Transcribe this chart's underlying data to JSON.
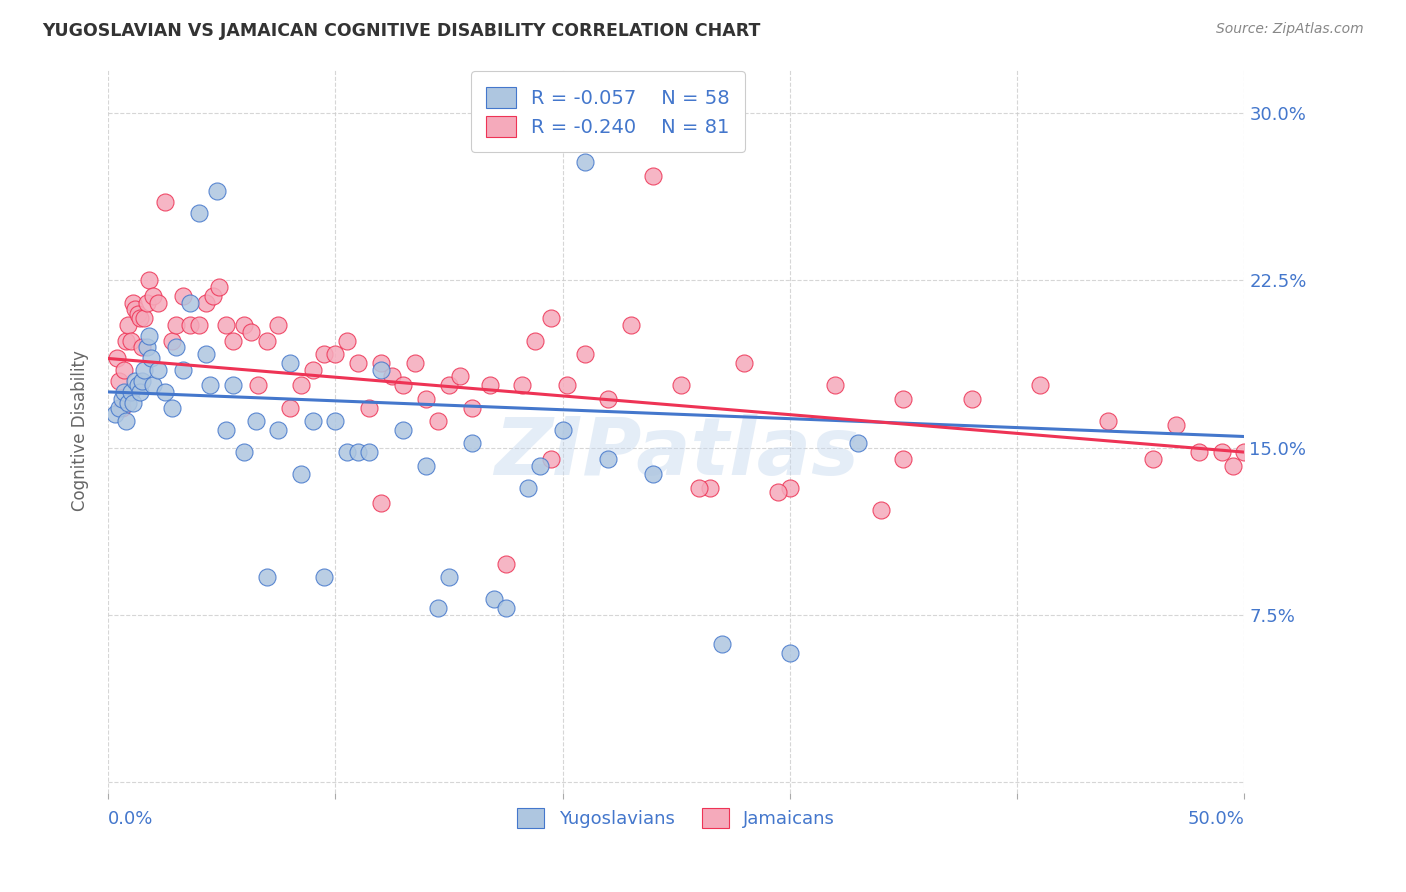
{
  "title": "YUGOSLAVIAN VS JAMAICAN COGNITIVE DISABILITY CORRELATION CHART",
  "source": "Source: ZipAtlas.com",
  "ylabel": "Cognitive Disability",
  "yticks": [
    0.0,
    0.075,
    0.15,
    0.225,
    0.3
  ],
  "ytick_labels": [
    "",
    "7.5%",
    "15.0%",
    "22.5%",
    "30.0%"
  ],
  "xlim": [
    0.0,
    0.5
  ],
  "ylim": [
    -0.005,
    0.32
  ],
  "yugo_R": -0.057,
  "yugo_N": 58,
  "jama_R": -0.24,
  "jama_N": 81,
  "yugo_color": "#aec6e0",
  "jama_color": "#f5aabb",
  "yugo_line_color": "#4477cc",
  "jama_line_color": "#ee3355",
  "legend_label_yugo": "Yugoslavians",
  "legend_label_jama": "Jamaicans",
  "watermark": "ZIPatlas",
  "background_color": "#ffffff",
  "grid_color": "#cccccc",
  "axis_label_color": "#4477cc",
  "yugo_x": [
    0.003,
    0.005,
    0.006,
    0.007,
    0.008,
    0.009,
    0.01,
    0.011,
    0.012,
    0.013,
    0.014,
    0.015,
    0.016,
    0.017,
    0.018,
    0.019,
    0.02,
    0.022,
    0.025,
    0.028,
    0.03,
    0.033,
    0.036,
    0.04,
    0.043,
    0.045,
    0.048,
    0.052,
    0.055,
    0.06,
    0.065,
    0.07,
    0.075,
    0.08,
    0.085,
    0.09,
    0.095,
    0.1,
    0.105,
    0.11,
    0.115,
    0.12,
    0.13,
    0.14,
    0.145,
    0.15,
    0.16,
    0.17,
    0.175,
    0.185,
    0.19,
    0.2,
    0.21,
    0.22,
    0.24,
    0.27,
    0.3,
    0.33
  ],
  "yugo_y": [
    0.165,
    0.168,
    0.172,
    0.175,
    0.162,
    0.17,
    0.175,
    0.17,
    0.18,
    0.178,
    0.175,
    0.18,
    0.185,
    0.195,
    0.2,
    0.19,
    0.178,
    0.185,
    0.175,
    0.168,
    0.195,
    0.185,
    0.215,
    0.255,
    0.192,
    0.178,
    0.265,
    0.158,
    0.178,
    0.148,
    0.162,
    0.092,
    0.158,
    0.188,
    0.138,
    0.162,
    0.092,
    0.162,
    0.148,
    0.148,
    0.148,
    0.185,
    0.158,
    0.142,
    0.078,
    0.092,
    0.152,
    0.082,
    0.078,
    0.132,
    0.142,
    0.158,
    0.278,
    0.145,
    0.138,
    0.062,
    0.058,
    0.152
  ],
  "jama_x": [
    0.004,
    0.005,
    0.006,
    0.007,
    0.008,
    0.009,
    0.01,
    0.011,
    0.012,
    0.013,
    0.014,
    0.015,
    0.016,
    0.017,
    0.018,
    0.02,
    0.022,
    0.025,
    0.028,
    0.03,
    0.033,
    0.036,
    0.04,
    0.043,
    0.046,
    0.049,
    0.052,
    0.055,
    0.06,
    0.063,
    0.066,
    0.07,
    0.075,
    0.08,
    0.085,
    0.09,
    0.095,
    0.1,
    0.105,
    0.11,
    0.115,
    0.12,
    0.125,
    0.13,
    0.135,
    0.14,
    0.145,
    0.15,
    0.155,
    0.16,
    0.168,
    0.175,
    0.182,
    0.188,
    0.195,
    0.202,
    0.21,
    0.22,
    0.23,
    0.24,
    0.252,
    0.265,
    0.28,
    0.3,
    0.32,
    0.35,
    0.38,
    0.41,
    0.44,
    0.46,
    0.47,
    0.48,
    0.49,
    0.495,
    0.5,
    0.34,
    0.295,
    0.35,
    0.12,
    0.195,
    0.26
  ],
  "jama_y": [
    0.19,
    0.18,
    0.168,
    0.185,
    0.198,
    0.205,
    0.198,
    0.215,
    0.212,
    0.21,
    0.208,
    0.195,
    0.208,
    0.215,
    0.225,
    0.218,
    0.215,
    0.26,
    0.198,
    0.205,
    0.218,
    0.205,
    0.205,
    0.215,
    0.218,
    0.222,
    0.205,
    0.198,
    0.205,
    0.202,
    0.178,
    0.198,
    0.205,
    0.168,
    0.178,
    0.185,
    0.192,
    0.192,
    0.198,
    0.188,
    0.168,
    0.188,
    0.182,
    0.178,
    0.188,
    0.172,
    0.162,
    0.178,
    0.182,
    0.168,
    0.178,
    0.098,
    0.178,
    0.198,
    0.208,
    0.178,
    0.192,
    0.172,
    0.205,
    0.272,
    0.178,
    0.132,
    0.188,
    0.132,
    0.178,
    0.172,
    0.172,
    0.178,
    0.162,
    0.145,
    0.16,
    0.148,
    0.148,
    0.142,
    0.148,
    0.122,
    0.13,
    0.145,
    0.125,
    0.145,
    0.132
  ]
}
